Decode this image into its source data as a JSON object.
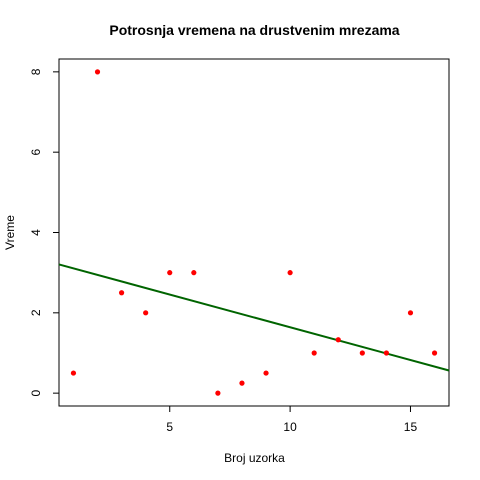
{
  "chart_data": {
    "type": "scatter",
    "title": "Potrosnja vremena na drustvenim mrezama",
    "xlabel": "Broj uzorka",
    "ylabel": "Vreme",
    "xlim": [
      0.4,
      16.6
    ],
    "ylim": [
      -0.32,
      8.32
    ],
    "xticks": [
      5,
      10,
      15
    ],
    "yticks": [
      0,
      2,
      4,
      6,
      8
    ],
    "grid": false,
    "points": [
      {
        "x": 1,
        "y": 0.5
      },
      {
        "x": 2,
        "y": 8
      },
      {
        "x": 3,
        "y": 2.5
      },
      {
        "x": 4,
        "y": 2
      },
      {
        "x": 5,
        "y": 3
      },
      {
        "x": 6,
        "y": 3
      },
      {
        "x": 7,
        "y": 0
      },
      {
        "x": 8,
        "y": 0.25
      },
      {
        "x": 9,
        "y": 0.5
      },
      {
        "x": 10,
        "y": 3
      },
      {
        "x": 11,
        "y": 1
      },
      {
        "x": 12,
        "y": 1.33
      },
      {
        "x": 13,
        "y": 1
      },
      {
        "x": 14,
        "y": 1
      },
      {
        "x": 15,
        "y": 2
      },
      {
        "x": 16,
        "y": 1
      }
    ],
    "point_color": "#ff0000",
    "trendline": {
      "intercept": 3.27,
      "slope": -0.163,
      "color": "#006400"
    }
  }
}
